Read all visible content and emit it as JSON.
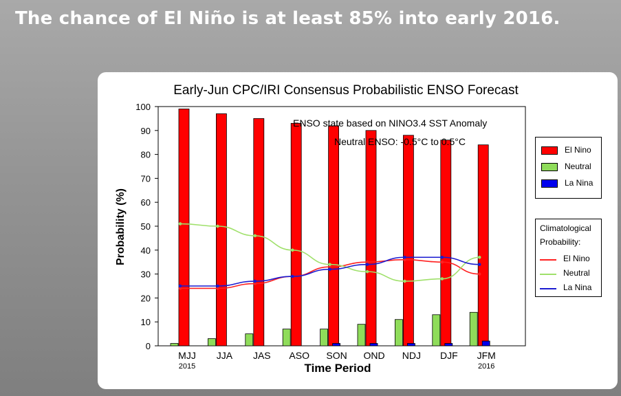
{
  "headline": "The chance of El Niño is at least 85% into early 2016.",
  "chart_data": {
    "type": "bar",
    "title": "Early-Jun CPC/IRI Consensus Probabilistic ENSO Forecast",
    "subtitle_line1": "ENSO state based on NINO3.4 SST Anomaly",
    "subtitle_line2": "Neutral ENSO: -0.5°C to 0.5°C",
    "xlabel": "Time Period",
    "ylabel": "Probability (%)",
    "ylim": [
      0,
      100
    ],
    "yticks": [
      0,
      10,
      20,
      30,
      40,
      50,
      60,
      70,
      80,
      90,
      100
    ],
    "categories": [
      "MJJ",
      "JJA",
      "JAS",
      "ASO",
      "SON",
      "OND",
      "NDJ",
      "DJF",
      "JFM"
    ],
    "year_labels": [
      "2015",
      "",
      "",
      "",
      "",
      "",
      "",
      "",
      "2016"
    ],
    "series": [
      {
        "name": "El Nino",
        "color": "#ff0000",
        "values": [
          99,
          97,
          95,
          93,
          92,
          90,
          88,
          86,
          84
        ]
      },
      {
        "name": "Neutral",
        "color": "#8fdc5a",
        "values": [
          1,
          3,
          5,
          7,
          7,
          9,
          11,
          13,
          14
        ]
      },
      {
        "name": "La Nina",
        "color": "#0000ee",
        "values": [
          0,
          0,
          0,
          0,
          1,
          1,
          1,
          1,
          2
        ]
      }
    ],
    "climatology": [
      {
        "name": "El Nino",
        "color": "#ff2020",
        "values": [
          24,
          24,
          26,
          29,
          33,
          35,
          36,
          35,
          30
        ]
      },
      {
        "name": "Neutral",
        "color": "#9fe06a",
        "values": [
          51,
          50,
          46,
          40,
          34,
          31,
          27,
          28,
          37
        ]
      },
      {
        "name": "La Nina",
        "color": "#1a1ad0",
        "values": [
          25,
          25,
          27,
          29,
          32,
          34,
          37,
          37,
          34
        ]
      }
    ],
    "legend": {
      "forecast": [
        "El Nino",
        "Neutral",
        "La Nina"
      ],
      "climatology_title_1": "Climatological",
      "climatology_title_2": "Probability:",
      "climatology": [
        "El Nino",
        "Neutral",
        "La Nina"
      ]
    },
    "grid": false
  }
}
